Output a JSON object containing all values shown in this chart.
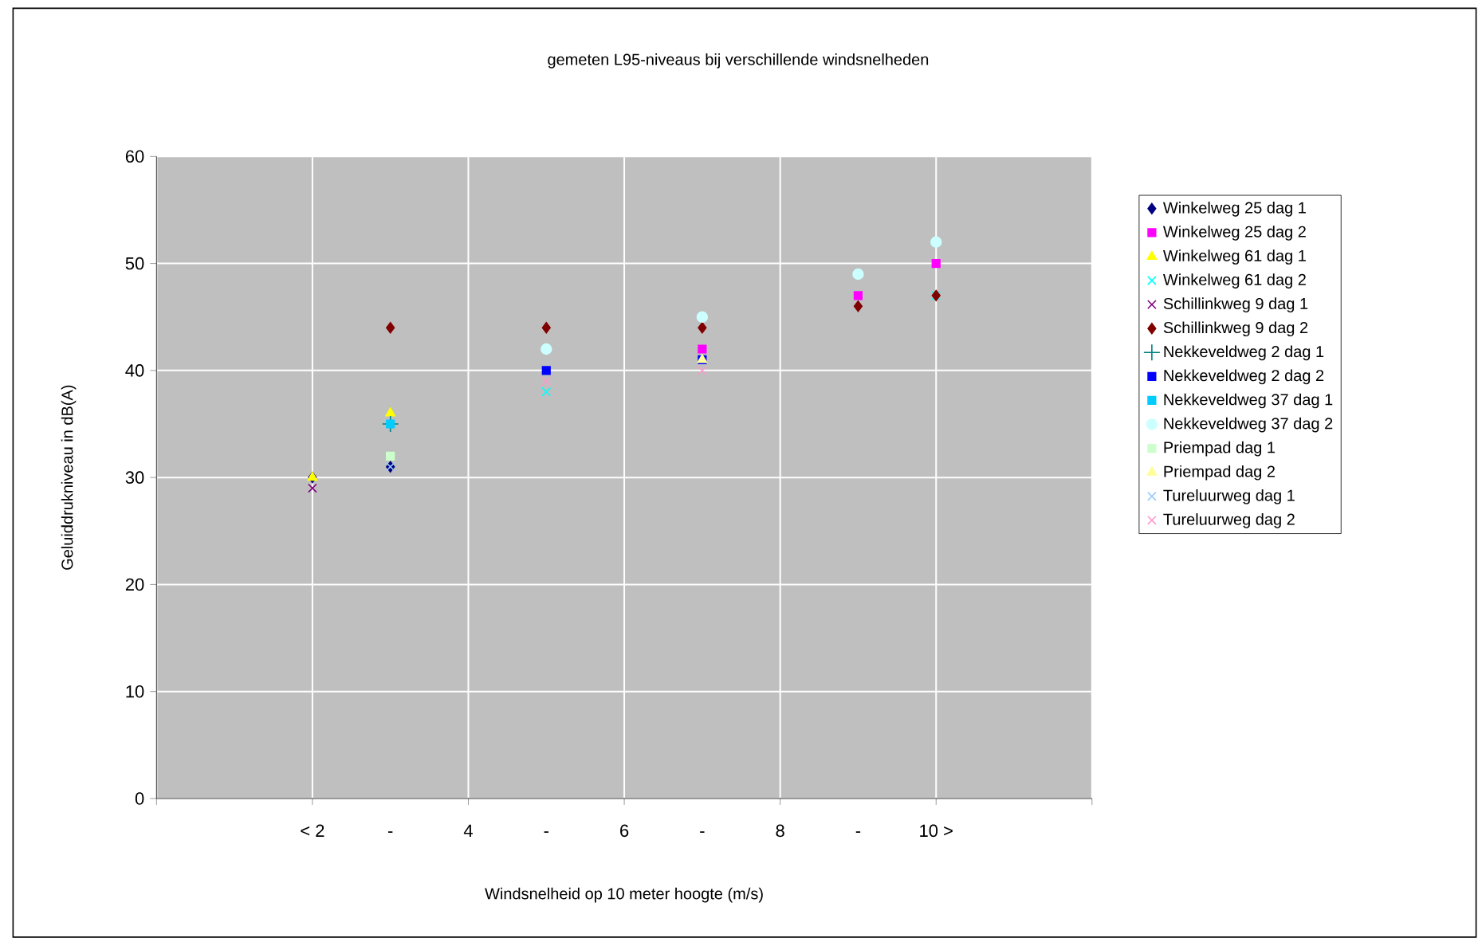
{
  "chart_data": {
    "type": "scatter",
    "title": "gemeten L95-niveaus bij verschillende windsnelheden",
    "xlabel": "Windsnelheid op 10 meter hoogte (m/s)",
    "ylabel": "Geluiddrukniveau in dB(A)",
    "x": [
      2,
      3,
      5,
      7,
      9,
      10
    ],
    "xlim": [
      0,
      12
    ],
    "xticks": [
      {
        "value": 0,
        "label": null
      },
      {
        "value": 2,
        "label": "< 2"
      },
      {
        "value": 3,
        "label": "-"
      },
      {
        "value": 4,
        "label": "4"
      },
      {
        "value": 5,
        "label": "-"
      },
      {
        "value": 6,
        "label": "6"
      },
      {
        "value": 7,
        "label": "-"
      },
      {
        "value": 8,
        "label": "8"
      },
      {
        "value": 9,
        "label": "-"
      },
      {
        "value": 10,
        "label": "10 >"
      },
      {
        "value": 12,
        "label": null
      }
    ],
    "ylim": [
      0,
      60
    ],
    "yticks": [
      0,
      10,
      20,
      30,
      40,
      50,
      60
    ],
    "grid": true,
    "legend": "right",
    "series": [
      {
        "name": "Winkelweg 25 dag 1",
        "color": "#000080",
        "marker": "diamond",
        "values": [
          30,
          31,
          null,
          null,
          null,
          null
        ]
      },
      {
        "name": "Winkelweg 25 dag 2",
        "color": "#ff00ff",
        "marker": "square",
        "values": [
          null,
          null,
          null,
          42,
          47,
          50
        ]
      },
      {
        "name": "Winkelweg 61 dag 1",
        "color": "#ffff00",
        "marker": "triangle",
        "values": [
          30,
          36,
          null,
          null,
          null,
          null
        ]
      },
      {
        "name": "Winkelweg 61 dag 2",
        "color": "#00ffff",
        "marker": "cross",
        "values": [
          null,
          null,
          38,
          null,
          null,
          47
        ]
      },
      {
        "name": "Schillinkweg 9 dag 1",
        "color": "#800080",
        "marker": "cross",
        "values": [
          29,
          null,
          null,
          null,
          null,
          null
        ]
      },
      {
        "name": "Schillinkweg 9 dag 2",
        "color": "#800000",
        "marker": "diamond",
        "values": [
          null,
          44,
          44,
          44,
          46,
          47
        ]
      },
      {
        "name": "Nekkeveldweg 2 dag 1",
        "color": "#008080",
        "marker": "plus",
        "values": [
          null,
          35,
          null,
          null,
          null,
          null
        ]
      },
      {
        "name": "Nekkeveldweg 2 dag 2",
        "color": "#0000ff",
        "marker": "square",
        "values": [
          null,
          null,
          40,
          41,
          null,
          null
        ]
      },
      {
        "name": "Nekkeveldweg 37 dag 1",
        "color": "#00ccff",
        "marker": "square",
        "values": [
          null,
          35,
          null,
          null,
          null,
          null
        ]
      },
      {
        "name": "Nekkeveldweg 37 dag 2",
        "color": "#ccffff",
        "marker": "circle",
        "values": [
          null,
          null,
          42,
          45,
          49,
          52
        ]
      },
      {
        "name": "Priempad dag 1",
        "color": "#ccffcc",
        "marker": "square",
        "values": [
          null,
          32,
          null,
          null,
          null,
          null
        ]
      },
      {
        "name": "Priempad dag 2",
        "color": "#ffff99",
        "marker": "triangle",
        "values": [
          null,
          null,
          null,
          41,
          null,
          null
        ]
      },
      {
        "name": "Tureluurweg dag 1",
        "color": "#99ccff",
        "marker": "cross",
        "values": [
          null,
          31,
          null,
          null,
          null,
          null
        ]
      },
      {
        "name": "Tureluurweg dag 2",
        "color": "#ff99cc",
        "marker": "cross",
        "values": [
          null,
          null,
          39,
          40,
          null,
          null
        ]
      }
    ]
  }
}
